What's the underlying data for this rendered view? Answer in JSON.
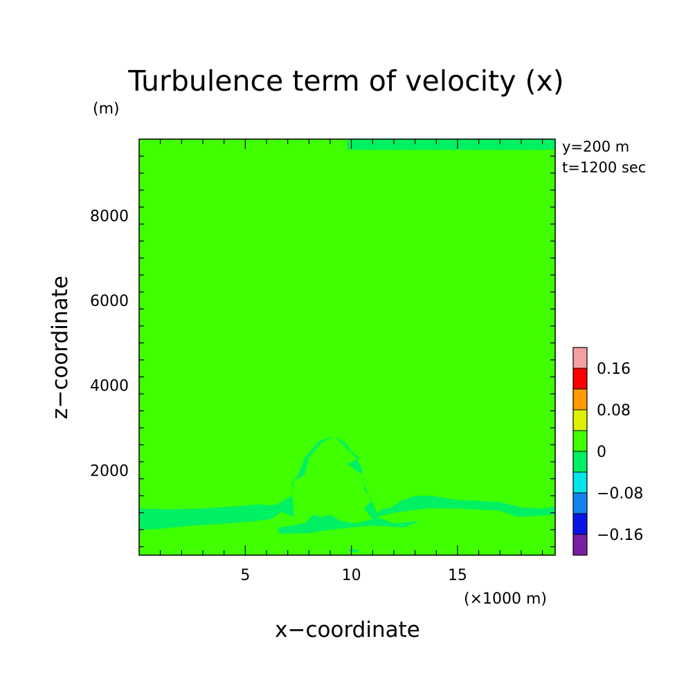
{
  "chart_data": {
    "type": "heatmap",
    "title": "Turbulence term of velocity (x)",
    "z_unit_label": "(m)",
    "xlabel": "x−coordinate",
    "ylabel": "z−coordinate",
    "x_unit_label": "(×1000 m)",
    "xlim": [
      0,
      19.6
    ],
    "ylim": [
      0,
      9800
    ],
    "x_ticks": [
      5,
      10,
      15
    ],
    "x_tick_labels": [
      "5",
      "10",
      "15"
    ],
    "y_ticks": [
      2000,
      4000,
      6000,
      8000
    ],
    "y_tick_labels": [
      "2000",
      "4000",
      "6000",
      "8000"
    ],
    "annotations": [
      "y=200 m",
      "t=1200 sec"
    ],
    "background_level": "0 to 0.04",
    "colorbar": {
      "colors": [
        "#7b1fa2",
        "#0a14e6",
        "#1483f0",
        "#00e6ea",
        "#00f064",
        "#40ff00",
        "#dcf000",
        "#ff9b00",
        "#ff0000",
        "#f4a0a0"
      ],
      "tick_labels": [
        "−0.16",
        "−0.08",
        "0",
        "0.08",
        "0.16"
      ],
      "tick_values": [
        -0.16,
        -0.08,
        0,
        0.08,
        0.16
      ],
      "boundaries": [
        -0.2,
        -0.16,
        -0.12,
        -0.08,
        -0.04,
        0,
        0.04,
        0.08,
        0.12,
        0.16,
        0.2
      ]
    },
    "regions": [
      {
        "level": "-0.04 to 0",
        "color": "#00f064",
        "polygon": [
          [
            9.8,
            9800
          ],
          [
            19.6,
            9800
          ],
          [
            19.6,
            9550
          ],
          [
            9.8,
            9550
          ]
        ]
      },
      {
        "level": "-0.04 to 0",
        "color": "#00f064",
        "polygon": [
          [
            0,
            1000
          ],
          [
            1.5,
            950
          ],
          [
            3,
            1000
          ],
          [
            4,
            1050
          ],
          [
            5.5,
            1050
          ],
          [
            6,
            1080
          ],
          [
            6.8,
            1000
          ],
          [
            7.3,
            900
          ],
          [
            7.2,
            1500
          ],
          [
            7.3,
            1750
          ],
          [
            7.8,
            1900
          ],
          [
            8,
            2300
          ],
          [
            8.6,
            2650
          ],
          [
            9.2,
            2800
          ],
          [
            9.7,
            2650
          ],
          [
            10,
            2450
          ],
          [
            10.4,
            2280
          ],
          [
            9.8,
            2150
          ],
          [
            10.5,
            1900
          ],
          [
            10.6,
            1550
          ],
          [
            11,
            1300
          ],
          [
            10.6,
            1100
          ],
          [
            11,
            850
          ],
          [
            10.2,
            750
          ],
          [
            9.5,
            800
          ],
          [
            9,
            950
          ],
          [
            8.6,
            900
          ],
          [
            8.2,
            950
          ],
          [
            7.8,
            750
          ],
          [
            6.6,
            650
          ],
          [
            6.5,
            550
          ],
          [
            6.8,
            500
          ],
          [
            8,
            520
          ],
          [
            9,
            600
          ],
          [
            10,
            650
          ],
          [
            11,
            700
          ],
          [
            12.5,
            650
          ],
          [
            13.2,
            800
          ],
          [
            12,
            750
          ],
          [
            11.2,
            900
          ],
          [
            12,
            1000
          ],
          [
            12.8,
            1050
          ],
          [
            13.5,
            1100
          ],
          [
            15,
            1100
          ],
          [
            17,
            1050
          ],
          [
            17.8,
            900
          ],
          [
            19.6,
            950
          ],
          [
            19.6,
            1150
          ],
          [
            19,
            1100
          ],
          [
            18,
            1120
          ],
          [
            17,
            1250
          ],
          [
            15,
            1300
          ],
          [
            13.8,
            1400
          ],
          [
            13,
            1400
          ],
          [
            12.3,
            1270
          ],
          [
            11.8,
            1100
          ],
          [
            11.5,
            1100
          ],
          [
            11.2,
            1000
          ],
          [
            10.9,
            1350
          ],
          [
            10.5,
            1750
          ],
          [
            10.5,
            2050
          ],
          [
            10.2,
            2300
          ],
          [
            9.8,
            2500
          ],
          [
            9.2,
            2800
          ],
          [
            8.5,
            2700
          ],
          [
            7.8,
            2300
          ],
          [
            7.5,
            1900
          ],
          [
            7.2,
            1700
          ],
          [
            7.2,
            1400
          ],
          [
            6.5,
            1200
          ],
          [
            5.8,
            1150
          ],
          [
            5,
            1100
          ],
          [
            4,
            1100
          ],
          [
            3,
            1050
          ],
          [
            1.5,
            1000
          ],
          [
            0,
            1000
          ],
          [
            0,
            600
          ],
          [
            1,
            620
          ],
          [
            2.5,
            700
          ],
          [
            4,
            740
          ],
          [
            5.5,
            800
          ],
          [
            6.2,
            850
          ],
          [
            6.8,
            1050
          ],
          [
            5.8,
            1200
          ],
          [
            4.5,
            1150
          ],
          [
            3,
            1100
          ],
          [
            1.5,
            1080
          ],
          [
            0,
            1100
          ]
        ]
      },
      {
        "level": "-0.04 to 0",
        "color": "#00f064",
        "polygon": [
          [
            9.9,
            150
          ],
          [
            10.4,
            120
          ],
          [
            10.2,
            60
          ],
          [
            9.9,
            80
          ]
        ]
      }
    ]
  }
}
